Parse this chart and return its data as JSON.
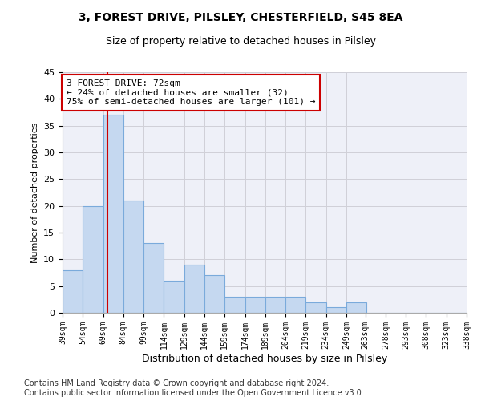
{
  "title": "3, FOREST DRIVE, PILSLEY, CHESTERFIELD, S45 8EA",
  "subtitle": "Size of property relative to detached houses in Pilsley",
  "xlabel": "Distribution of detached houses by size in Pilsley",
  "ylabel": "Number of detached properties",
  "bar_values": [
    8,
    20,
    37,
    21,
    13,
    6,
    9,
    7,
    3,
    3,
    3,
    3,
    2,
    1,
    2,
    0,
    0,
    0,
    0,
    0
  ],
  "bin_edges": [
    39,
    54,
    69,
    84,
    99,
    114,
    129,
    144,
    159,
    174,
    189,
    204,
    219,
    234,
    249,
    263,
    278,
    293,
    308,
    323,
    338
  ],
  "bin_labels": [
    "39sqm",
    "54sqm",
    "69sqm",
    "84sqm",
    "99sqm",
    "114sqm",
    "129sqm",
    "144sqm",
    "159sqm",
    "174sqm",
    "189sqm",
    "204sqm",
    "219sqm",
    "234sqm",
    "249sqm",
    "263sqm",
    "278sqm",
    "293sqm",
    "308sqm",
    "323sqm",
    "338sqm"
  ],
  "bar_color": "#c5d8f0",
  "bar_edge_color": "#7aaadb",
  "grid_color": "#d0d0d8",
  "background_color": "#eef0f8",
  "vline_x": 72,
  "vline_color": "#cc0000",
  "ylim": [
    0,
    45
  ],
  "yticks": [
    0,
    5,
    10,
    15,
    20,
    25,
    30,
    35,
    40,
    45
  ],
  "annotation_line1": "3 FOREST DRIVE: 72sqm",
  "annotation_line2": "← 24% of detached houses are smaller (32)",
  "annotation_line3": "75% of semi-detached houses are larger (101) →",
  "annotation_box_color": "#ffffff",
  "annotation_border_color": "#cc0000",
  "footer_text": "Contains HM Land Registry data © Crown copyright and database right 2024.\nContains public sector information licensed under the Open Government Licence v3.0.",
  "title_fontsize": 10,
  "subtitle_fontsize": 9,
  "annotation_fontsize": 8,
  "footer_fontsize": 7,
  "ylabel_fontsize": 8,
  "xlabel_fontsize": 9
}
